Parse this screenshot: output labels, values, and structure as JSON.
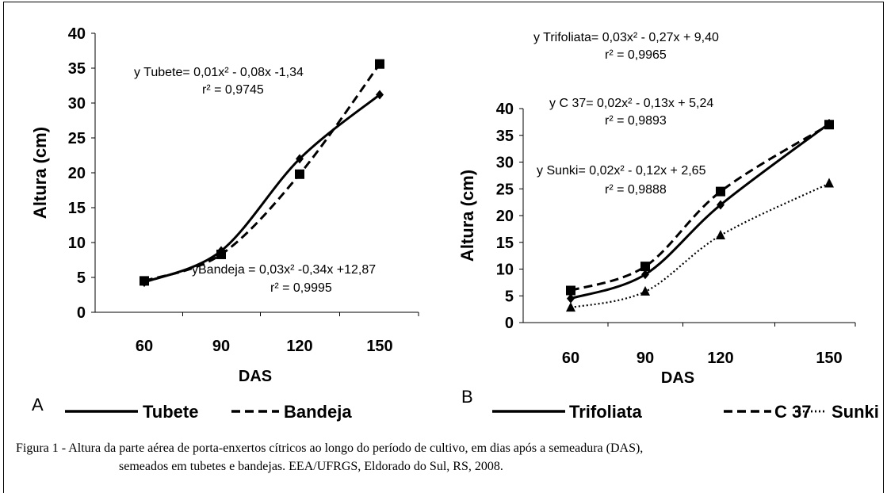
{
  "colors": {
    "ink": "#000000"
  },
  "chart_data": [
    {
      "type": "scatter",
      "panel_label": "A",
      "xlabel": "DAS",
      "ylabel": "Altura (cm)",
      "categories": [
        60,
        90,
        120,
        150
      ],
      "ylim": [
        0,
        40
      ],
      "yticks": [
        0,
        5,
        10,
        15,
        20,
        25,
        30,
        35,
        40
      ],
      "series": [
        {
          "name": "Tubete",
          "style": "solid",
          "marker": "diamond",
          "values": [
            4.3,
            8.8,
            22.0,
            31.2
          ],
          "equation": "y Tubete= 0,01x² - 0,08x -1,34",
          "r2": "r² = 0,9745"
        },
        {
          "name": "Bandeja",
          "style": "dashed",
          "marker": "square",
          "values": [
            4.5,
            8.3,
            19.8,
            35.6
          ],
          "equation": "yBandeja = 0,03x² -0,34x +12,87",
          "r2": "r² = 0,9995"
        }
      ]
    },
    {
      "type": "scatter",
      "panel_label": "B",
      "xlabel": "DAS",
      "ylabel": "Altura (cm)",
      "categories": [
        60,
        90,
        120,
        150
      ],
      "ylim": [
        0,
        40
      ],
      "yticks": [
        0,
        5,
        10,
        15,
        20,
        25,
        30,
        35,
        40
      ],
      "series": [
        {
          "name": "Trifoliata",
          "style": "solid",
          "marker": "diamond",
          "values": [
            4.5,
            9.0,
            22.0,
            37.2
          ],
          "equation": "y Trifoliata= 0,03x² - 0,27x + 9,40",
          "r2": "r² = 0,9965"
        },
        {
          "name": "C 37",
          "style": "dashed",
          "marker": "square",
          "values": [
            6.0,
            10.5,
            24.5,
            37.0
          ],
          "equation": "y C 37= 0,02x² - 0,13x + 5,24",
          "r2": "r² = 0,9893"
        },
        {
          "name": "Sunki",
          "style": "dotted",
          "marker": "triangle",
          "values": [
            2.8,
            5.8,
            16.3,
            26.0
          ],
          "equation": "y Sunki= 0,02x² - 0,12x + 2,65",
          "r2": "r² = 0,9888"
        }
      ]
    }
  ],
  "caption": {
    "line1": "Figura 1 - Altura da parte aérea de porta-enxertos cítricos ao longo do período de cultivo, em dias após a semeadura (DAS),",
    "line2": "semeados em tubetes e bandejas. EEA/UFRGS, Eldorado do Sul, RS, 2008."
  }
}
